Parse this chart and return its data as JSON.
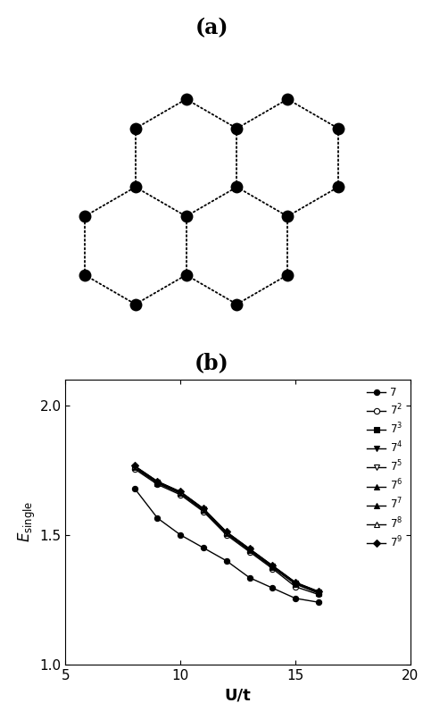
{
  "title_a": "(a)",
  "title_b": "(b)",
  "xlabel": "U/t",
  "ylabel": "E_{single}",
  "xlim": [
    5,
    20
  ],
  "ylim": [
    1.0,
    2.1
  ],
  "xticks": [
    5,
    10,
    15,
    20
  ],
  "yticks": [
    1.0,
    1.5,
    2.0
  ],
  "series": [
    {
      "label": "7",
      "marker": "o",
      "fillstyle": "full",
      "x": [
        8.0,
        9.0,
        10.0,
        11.0,
        12.0,
        13.0,
        14.0,
        15.0,
        16.0
      ],
      "y": [
        1.68,
        1.565,
        1.5,
        1.45,
        1.4,
        1.335,
        1.295,
        1.255,
        1.24
      ]
    },
    {
      "label": "7$^2$",
      "marker": "o",
      "fillstyle": "none",
      "x": [
        8.0,
        9.0,
        10.0,
        11.0,
        12.0,
        13.0,
        14.0,
        15.0,
        16.0
      ],
      "y": [
        1.755,
        1.695,
        1.655,
        1.59,
        1.5,
        1.435,
        1.37,
        1.3,
        1.27
      ]
    },
    {
      "label": "7$^3$",
      "marker": "s",
      "fillstyle": "full",
      "x": [
        8.0,
        9.0,
        10.0,
        11.0,
        12.0,
        13.0,
        14.0,
        15.0,
        16.0
      ],
      "y": [
        1.76,
        1.7,
        1.66,
        1.595,
        1.505,
        1.44,
        1.375,
        1.31,
        1.275
      ]
    },
    {
      "label": "7$^4$",
      "marker": "v",
      "fillstyle": "full",
      "x": [
        8.0,
        9.0,
        10.0,
        11.0,
        12.0,
        13.0,
        14.0,
        15.0,
        16.0
      ],
      "y": [
        1.762,
        1.702,
        1.662,
        1.597,
        1.507,
        1.442,
        1.377,
        1.312,
        1.277
      ]
    },
    {
      "label": "7$^5$",
      "marker": "v",
      "fillstyle": "none",
      "x": [
        8.0,
        9.0,
        10.0,
        11.0,
        12.0,
        13.0,
        14.0,
        15.0,
        16.0
      ],
      "y": [
        1.763,
        1.703,
        1.663,
        1.598,
        1.508,
        1.443,
        1.378,
        1.313,
        1.278
      ]
    },
    {
      "label": "7$^6$",
      "marker": "^",
      "fillstyle": "full",
      "x": [
        8.0,
        9.0,
        10.0,
        11.0,
        12.0,
        13.0,
        14.0,
        15.0,
        16.0
      ],
      "y": [
        1.764,
        1.704,
        1.664,
        1.599,
        1.509,
        1.444,
        1.379,
        1.314,
        1.279
      ]
    },
    {
      "label": "7$^7$",
      "marker": "^",
      "fillstyle": "full",
      "x": [
        8.0,
        9.0,
        10.0,
        11.0,
        12.0,
        13.0,
        14.0,
        15.0,
        16.0
      ],
      "y": [
        1.765,
        1.705,
        1.665,
        1.6,
        1.51,
        1.445,
        1.38,
        1.315,
        1.28
      ]
    },
    {
      "label": "7$^8$",
      "marker": "^",
      "fillstyle": "none",
      "x": [
        8.0,
        9.0,
        10.0,
        11.0,
        12.0,
        13.0,
        14.0,
        15.0,
        16.0
      ],
      "y": [
        1.766,
        1.706,
        1.666,
        1.601,
        1.511,
        1.446,
        1.381,
        1.316,
        1.281
      ]
    },
    {
      "label": "7$^9$",
      "marker": "D",
      "fillstyle": "full",
      "x": [
        8.0,
        9.0,
        10.0,
        11.0,
        12.0,
        13.0,
        14.0,
        15.0,
        16.0
      ],
      "y": [
        1.767,
        1.707,
        1.667,
        1.602,
        1.512,
        1.447,
        1.382,
        1.317,
        1.282
      ]
    }
  ]
}
